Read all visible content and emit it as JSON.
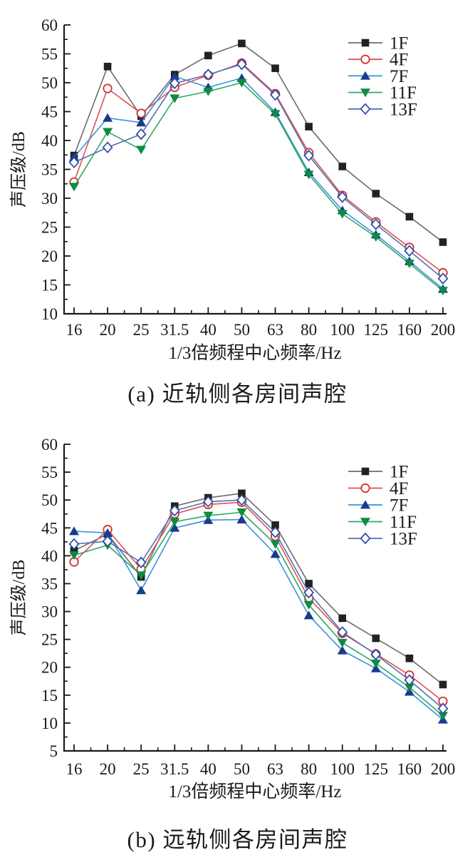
{
  "figure": {
    "background": "#ffffff",
    "text_color": "#1a1a1a"
  },
  "chart_data": [
    {
      "type": "line",
      "caption": "(a) 近轨侧各房间声腔",
      "xlabel": "1/3倍频程中心频率/Hz",
      "ylabel": "声压级/dB",
      "ylim": [
        10,
        60
      ],
      "ytick_step": 5,
      "grid": false,
      "legend_position": "top-right-inside",
      "categories": [
        "16",
        "20",
        "25",
        "31.5",
        "40",
        "50",
        "63",
        "80",
        "100",
        "125",
        "160",
        "200"
      ],
      "series": [
        {
          "name": "1F",
          "marker": "filled-square",
          "line_color": "#6b6b6b",
          "marker_color": "#222222",
          "values": [
            37.4,
            52.8,
            44.2,
            51.4,
            54.7,
            56.8,
            52.5,
            42.4,
            35.5,
            30.8,
            26.8,
            22.4
          ]
        },
        {
          "name": "4F",
          "marker": "open-circle",
          "line_color": "#e05252",
          "marker_color": "#d42f2f",
          "values": [
            32.8,
            49.0,
            44.7,
            49.2,
            51.3,
            53.4,
            48.1,
            37.9,
            30.5,
            25.9,
            21.5,
            17.1
          ]
        },
        {
          "name": "7F",
          "marker": "filled-triangle-up",
          "line_color": "#3b93d6",
          "marker_color": "#1a3a8e",
          "values": [
            37.1,
            43.9,
            43.1,
            51.1,
            49.2,
            50.8,
            44.9,
            34.5,
            27.9,
            23.7,
            19.1,
            14.3
          ]
        },
        {
          "name": "11F",
          "marker": "filled-triangle-down",
          "line_color": "#2ea866",
          "marker_color": "#0d8c42",
          "values": [
            32.0,
            41.5,
            38.4,
            47.3,
            48.5,
            50.0,
            44.6,
            34.1,
            27.3,
            23.3,
            18.7,
            14.0
          ]
        },
        {
          "name": "13F",
          "marker": "open-diamond",
          "line_color": "#5570b4",
          "marker_color": "#2a4aa4",
          "values": [
            36.2,
            38.8,
            41.1,
            49.9,
            51.4,
            53.2,
            47.9,
            37.4,
            30.2,
            25.5,
            20.9,
            16.1
          ]
        }
      ]
    },
    {
      "type": "line",
      "caption": "(b) 远轨侧各房间声腔",
      "xlabel": "1/3倍频程中心频率/Hz",
      "ylabel": "声压级/dB",
      "ylim": [
        5,
        60
      ],
      "ytick_step": 5,
      "grid": false,
      "legend_position": "top-right-inside",
      "categories": [
        "16",
        "20",
        "25",
        "31.5",
        "40",
        "50",
        "63",
        "80",
        "100",
        "125",
        "160",
        "200"
      ],
      "series": [
        {
          "name": "1F",
          "marker": "filled-square",
          "line_color": "#6b6b6b",
          "marker_color": "#222222",
          "values": [
            40.9,
            43.9,
            36.2,
            48.9,
            50.4,
            51.2,
            45.5,
            35.0,
            28.8,
            25.2,
            21.6,
            16.9
          ]
        },
        {
          "name": "4F",
          "marker": "open-circle",
          "line_color": "#e05252",
          "marker_color": "#d42f2f",
          "values": [
            38.9,
            44.7,
            37.6,
            47.5,
            49.2,
            49.6,
            43.5,
            32.4,
            26.1,
            22.4,
            18.6,
            13.9
          ]
        },
        {
          "name": "7F",
          "marker": "filled-triangle-up",
          "line_color": "#3b93d6",
          "marker_color": "#1a3a8e",
          "values": [
            44.4,
            44.1,
            33.8,
            45.0,
            46.4,
            46.5,
            40.3,
            29.3,
            23.0,
            19.8,
            15.6,
            10.6
          ]
        },
        {
          "name": "11F",
          "marker": "filled-triangle-down",
          "line_color": "#2ea866",
          "marker_color": "#0d8c42",
          "values": [
            40.1,
            41.9,
            36.5,
            46.1,
            47.2,
            47.8,
            42.1,
            31.2,
            24.4,
            20.7,
            16.4,
            11.3
          ]
        },
        {
          "name": "13F",
          "marker": "open-diamond",
          "line_color": "#5570b4",
          "marker_color": "#2a4aa4",
          "values": [
            42.1,
            42.6,
            38.8,
            48.1,
            49.7,
            50.0,
            44.2,
            33.4,
            26.3,
            22.3,
            17.7,
            12.6
          ]
        }
      ]
    }
  ]
}
